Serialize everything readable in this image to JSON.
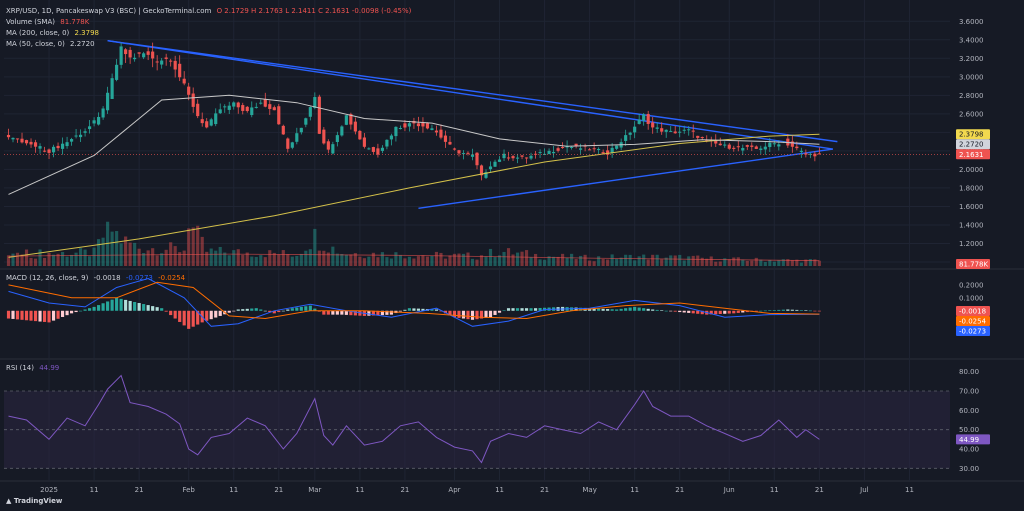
{
  "colors": {
    "background": "#161a25",
    "grid": "#1f2433",
    "text": "#b2b5be",
    "up": "#26a69a",
    "down": "#ef5350",
    "ma200": "#d4c14a",
    "ma50": "#c8c8c8",
    "trendline": "#2962ff",
    "macd_line": "#2962ff",
    "signal_line": "#ff6d00",
    "rsi_line": "#7e57c2",
    "rsi_band": "#2a2440"
  },
  "legend": {
    "title": "XRP/USD, 1D, Pancakeswap V3 (BSC) | GeckoTerminal.com",
    "ohlc": "O 2.1729  H 2.1763  L 2.1411  C 2.1631  -0.0098 (-0.45%)",
    "volume_label": "Volume (SMA)",
    "volume_value": "81.778K",
    "ma200_label": "MA (200, close, 0)",
    "ma200_value": "2.3798",
    "ma50_label": "MA (50, close, 0)",
    "ma50_value": "2.2720",
    "macd_label": "MACD (12, 26, close, 9)",
    "macd_v1": "-0.0018",
    "macd_v2": "-0.0273",
    "macd_v3": "-0.0254",
    "rsi_label": "RSI (14)",
    "rsi_value": "44.99"
  },
  "brand": "TradingView",
  "chart_data": [
    {
      "type": "candlestick",
      "ylim": [
        1.0,
        3.7
      ],
      "yticks": [
        "3.6000",
        "3.4000",
        "3.2000",
        "3.0000",
        "2.8000",
        "2.6000",
        "2.4000",
        "2.2000",
        "2.0000",
        "1.8000",
        "1.6000",
        "1.4000",
        "1.2000",
        "1.0000"
      ],
      "yticks_values": [
        3.6,
        3.4,
        3.2,
        3.0,
        2.8,
        2.6,
        2.4,
        2.2,
        2.0,
        1.8,
        1.6,
        1.4,
        1.2,
        1.0
      ],
      "x_labels": [
        "2025",
        "11",
        "21",
        "Feb",
        "11",
        "21",
        "Mar",
        "11",
        "21",
        "Apr",
        "11",
        "21",
        "May",
        "11",
        "21",
        "Jun",
        "11",
        "21",
        "Jul",
        "11"
      ],
      "x_label_days": [
        0,
        10,
        20,
        31,
        41,
        51,
        59,
        69,
        79,
        90,
        100,
        110,
        120,
        130,
        140,
        151,
        161,
        171,
        181,
        191
      ],
      "x_range_days": [
        -10,
        200
      ],
      "last_day": 171,
      "close_path": [
        [
          -9,
          2.35
        ],
        [
          -5,
          2.28
        ],
        [
          0,
          2.2
        ],
        [
          4,
          2.3
        ],
        [
          8,
          2.42
        ],
        [
          11,
          2.55
        ],
        [
          13,
          2.8
        ],
        [
          16,
          3.3
        ],
        [
          18,
          3.2
        ],
        [
          21,
          3.25
        ],
        [
          24,
          3.18
        ],
        [
          27,
          3.2
        ],
        [
          30,
          2.9
        ],
        [
          33,
          2.58
        ],
        [
          35,
          2.45
        ],
        [
          38,
          2.65
        ],
        [
          41,
          2.7
        ],
        [
          44,
          2.62
        ],
        [
          47,
          2.72
        ],
        [
          50,
          2.65
        ],
        [
          53,
          2.22
        ],
        [
          56,
          2.45
        ],
        [
          59,
          2.8
        ],
        [
          60,
          2.4
        ],
        [
          62,
          2.2
        ],
        [
          66,
          2.58
        ],
        [
          70,
          2.25
        ],
        [
          73,
          2.18
        ],
        [
          77,
          2.45
        ],
        [
          81,
          2.5
        ],
        [
          85,
          2.45
        ],
        [
          90,
          2.2
        ],
        [
          94,
          2.15
        ],
        [
          96,
          1.92
        ],
        [
          98,
          2.05
        ],
        [
          101,
          2.15
        ],
        [
          105,
          2.12
        ],
        [
          110,
          2.18
        ],
        [
          115,
          2.25
        ],
        [
          120,
          2.22
        ],
        [
          124,
          2.18
        ],
        [
          128,
          2.35
        ],
        [
          132,
          2.58
        ],
        [
          134,
          2.45
        ],
        [
          138,
          2.4
        ],
        [
          142,
          2.42
        ],
        [
          146,
          2.3
        ],
        [
          150,
          2.25
        ],
        [
          154,
          2.23
        ],
        [
          157,
          2.22
        ],
        [
          160,
          2.27
        ],
        [
          163,
          2.3
        ],
        [
          166,
          2.22
        ],
        [
          168,
          2.16
        ],
        [
          171,
          2.1631
        ]
      ],
      "ma200_path": [
        [
          -9,
          1.05
        ],
        [
          20,
          1.25
        ],
        [
          50,
          1.5
        ],
        [
          80,
          1.8
        ],
        [
          110,
          2.08
        ],
        [
          140,
          2.28
        ],
        [
          160,
          2.36
        ],
        [
          171,
          2.3798
        ]
      ],
      "ma50_path": [
        [
          -9,
          1.73
        ],
        [
          10,
          2.15
        ],
        [
          25,
          2.75
        ],
        [
          40,
          2.8
        ],
        [
          55,
          2.72
        ],
        [
          70,
          2.55
        ],
        [
          85,
          2.5
        ],
        [
          100,
          2.33
        ],
        [
          115,
          2.25
        ],
        [
          130,
          2.27
        ],
        [
          145,
          2.32
        ],
        [
          160,
          2.3
        ],
        [
          171,
          2.272
        ]
      ],
      "trendlines": [
        [
          [
            13,
            3.39
          ],
          [
            174,
            2.22
          ]
        ],
        [
          [
            82,
            1.58
          ],
          [
            174,
            2.22
          ]
        ],
        [
          [
            13,
            3.39
          ],
          [
            175,
            2.3
          ]
        ]
      ],
      "badges": [
        {
          "text": "2.3798",
          "color": "#f2d94e",
          "price": 2.3798
        },
        {
          "text": "2.2720",
          "color": "#d1d4dc",
          "price": 2.272
        },
        {
          "text": "2.1631",
          "color": "#ef5350",
          "price": 2.1631
        }
      ]
    },
    {
      "type": "bar",
      "name_text": "Volume",
      "profile": [
        [
          -9,
          18
        ],
        [
          10,
          20
        ],
        [
          12,
          45
        ],
        [
          14,
          55
        ],
        [
          16,
          40
        ],
        [
          20,
          28
        ],
        [
          30,
          25
        ],
        [
          31,
          75
        ],
        [
          32,
          55
        ],
        [
          35,
          22
        ],
        [
          45,
          20
        ],
        [
          55,
          18
        ],
        [
          59,
          45
        ],
        [
          60,
          38
        ],
        [
          65,
          20
        ],
        [
          75,
          18
        ],
        [
          85,
          16
        ],
        [
          95,
          15
        ],
        [
          100,
          22
        ],
        [
          110,
          15
        ],
        [
          120,
          12
        ],
        [
          130,
          14
        ],
        [
          140,
          13
        ],
        [
          150,
          10
        ],
        [
          160,
          9
        ],
        [
          171,
          8
        ]
      ],
      "sma_path": [
        [
          -9,
          15
        ],
        [
          40,
          18
        ],
        [
          80,
          16
        ],
        [
          120,
          12
        ],
        [
          171,
          8
        ]
      ],
      "badge": {
        "text": "81.778K",
        "color": "#ef5350"
      }
    },
    {
      "type": "bar",
      "name_text": "MACD",
      "ylim": [
        -0.35,
        0.3
      ],
      "yticks": [
        "0.2000",
        "0.1000",
        "0.0000",
        "-0.1000"
      ],
      "yticks_values": [
        0.2,
        0.1,
        0.0,
        -0.1
      ],
      "histogram_profile": [
        [
          -9,
          -0.06
        ],
        [
          0,
          -0.09
        ],
        [
          5,
          -0.02
        ],
        [
          10,
          0.03
        ],
        [
          15,
          0.1
        ],
        [
          20,
          0.06
        ],
        [
          25,
          0.02
        ],
        [
          28,
          -0.06
        ],
        [
          31,
          -0.14
        ],
        [
          34,
          -0.09
        ],
        [
          38,
          -0.04
        ],
        [
          42,
          0.01
        ],
        [
          46,
          0.02
        ],
        [
          50,
          -0.02
        ],
        [
          54,
          0.02
        ],
        [
          58,
          0.04
        ],
        [
          61,
          -0.03
        ],
        [
          65,
          -0.03
        ],
        [
          70,
          -0.04
        ],
        [
          76,
          -0.03
        ],
        [
          80,
          0.02
        ],
        [
          86,
          0.01
        ],
        [
          90,
          -0.05
        ],
        [
          94,
          -0.07
        ],
        [
          98,
          -0.05
        ],
        [
          102,
          0.02
        ],
        [
          108,
          0.02
        ],
        [
          114,
          0.03
        ],
        [
          120,
          0.02
        ],
        [
          126,
          0.01
        ],
        [
          130,
          0.03
        ],
        [
          134,
          0.01
        ],
        [
          140,
          -0.01
        ],
        [
          146,
          -0.03
        ],
        [
          152,
          -0.02
        ],
        [
          158,
          0.0
        ],
        [
          164,
          0.01
        ],
        [
          171,
          -0.0018
        ]
      ],
      "macd_path": [
        [
          -9,
          0.15
        ],
        [
          0,
          0.06
        ],
        [
          8,
          0.03
        ],
        [
          15,
          0.18
        ],
        [
          22,
          0.25
        ],
        [
          30,
          0.1
        ],
        [
          36,
          -0.12
        ],
        [
          42,
          -0.1
        ],
        [
          50,
          0.0
        ],
        [
          58,
          0.05
        ],
        [
          66,
          0.0
        ],
        [
          76,
          -0.05
        ],
        [
          86,
          0.02
        ],
        [
          94,
          -0.12
        ],
        [
          102,
          -0.08
        ],
        [
          110,
          0.01
        ],
        [
          120,
          0.02
        ],
        [
          130,
          0.08
        ],
        [
          140,
          0.04
        ],
        [
          150,
          -0.05
        ],
        [
          160,
          -0.03
        ],
        [
          171,
          -0.0273
        ]
      ],
      "signal_path": [
        [
          -9,
          0.2
        ],
        [
          5,
          0.1
        ],
        [
          15,
          0.1
        ],
        [
          24,
          0.22
        ],
        [
          32,
          0.18
        ],
        [
          40,
          -0.04
        ],
        [
          48,
          -0.06
        ],
        [
          58,
          0.0
        ],
        [
          70,
          0.0
        ],
        [
          84,
          -0.02
        ],
        [
          96,
          -0.05
        ],
        [
          106,
          -0.06
        ],
        [
          116,
          0.0
        ],
        [
          128,
          0.04
        ],
        [
          140,
          0.06
        ],
        [
          150,
          0.02
        ],
        [
          160,
          -0.02
        ],
        [
          171,
          -0.0254
        ]
      ],
      "badges": [
        {
          "text": "-0.0018",
          "color": "#ef5350",
          "value": -0.0018
        },
        {
          "text": "-0.0254",
          "color": "#ff6d00",
          "value": -0.0254
        },
        {
          "text": "-0.0273",
          "color": "#2962ff",
          "value": -0.0273
        }
      ]
    },
    {
      "type": "line",
      "name_text": "RSI",
      "ylim": [
        25,
        85
      ],
      "yticks": [
        "80.00",
        "70.00",
        "60.00",
        "50.00",
        "40.00",
        "30.00"
      ],
      "yticks_values": [
        80,
        70,
        60,
        50,
        40,
        30
      ],
      "band": [
        30,
        70
      ],
      "rsi_path": [
        [
          -9,
          57
        ],
        [
          -5,
          55
        ],
        [
          0,
          45
        ],
        [
          4,
          56
        ],
        [
          8,
          52
        ],
        [
          11,
          63
        ],
        [
          13,
          71
        ],
        [
          16,
          78
        ],
        [
          18,
          64
        ],
        [
          22,
          62
        ],
        [
          26,
          58
        ],
        [
          29,
          53
        ],
        [
          31,
          40
        ],
        [
          33,
          37
        ],
        [
          36,
          46
        ],
        [
          40,
          48
        ],
        [
          44,
          56
        ],
        [
          48,
          52
        ],
        [
          52,
          40
        ],
        [
          55,
          48
        ],
        [
          59,
          66
        ],
        [
          61,
          47
        ],
        [
          63,
          42
        ],
        [
          66,
          52
        ],
        [
          70,
          42
        ],
        [
          74,
          44
        ],
        [
          78,
          52
        ],
        [
          82,
          54
        ],
        [
          86,
          46
        ],
        [
          90,
          41
        ],
        [
          94,
          39
        ],
        [
          96,
          33
        ],
        [
          98,
          44
        ],
        [
          102,
          48
        ],
        [
          106,
          46
        ],
        [
          110,
          52
        ],
        [
          114,
          50
        ],
        [
          118,
          48
        ],
        [
          122,
          54
        ],
        [
          126,
          50
        ],
        [
          130,
          63
        ],
        [
          132,
          70
        ],
        [
          134,
          62
        ],
        [
          138,
          57
        ],
        [
          142,
          57
        ],
        [
          146,
          52
        ],
        [
          150,
          48
        ],
        [
          154,
          44
        ],
        [
          158,
          47
        ],
        [
          162,
          55
        ],
        [
          166,
          46
        ],
        [
          168,
          50
        ],
        [
          171,
          44.99
        ]
      ],
      "badge": {
        "text": "44.99",
        "color": "#7e57c2"
      }
    }
  ]
}
